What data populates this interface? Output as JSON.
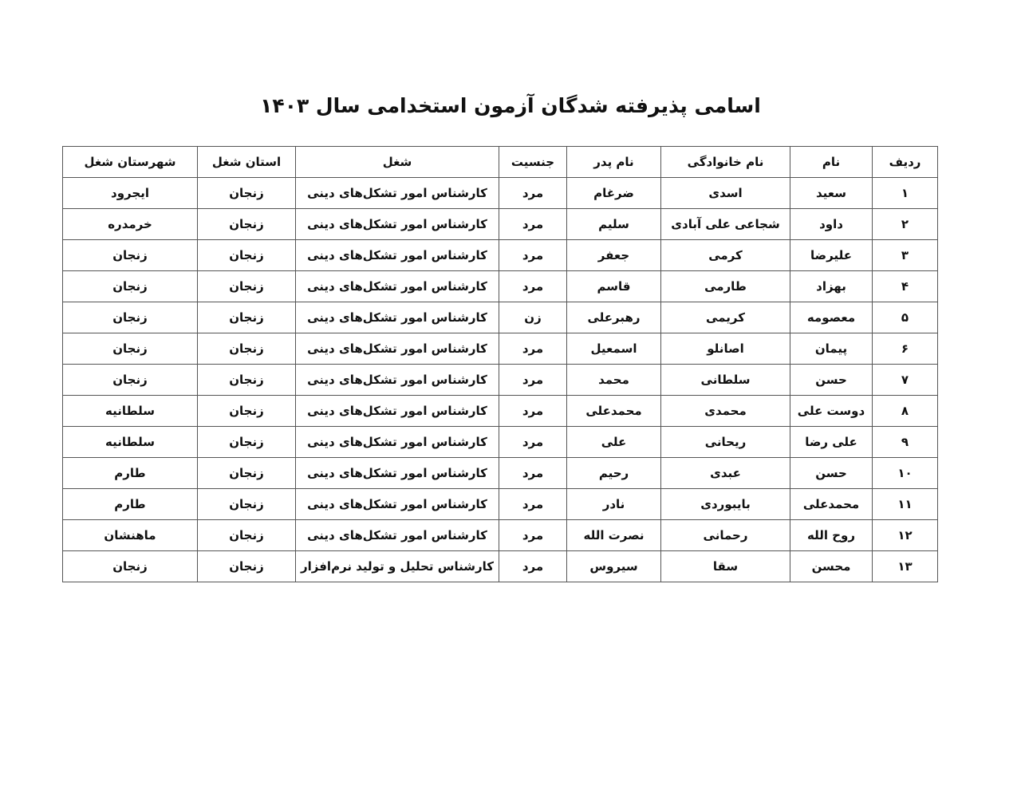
{
  "title": "اسامی پذیرفته شدگان آزمون استخدامی سال ۱۴۰۳",
  "headers": [
    "ردیف",
    "نام",
    "نام خانوادگی",
    "نام پدر",
    "جنسیت",
    "شغل",
    "استان شغل",
    "شهرستان شغل"
  ],
  "rows": [
    [
      "۱",
      "سعید",
      "اسدی",
      "ضرغام",
      "مرد",
      "کارشناس امور تشکل‌های دینی",
      "زنجان",
      "ایجرود"
    ],
    [
      "۲",
      "داود",
      "شجاعی علی آبادی",
      "سلیم",
      "مرد",
      "کارشناس امور تشکل‌های دینی",
      "زنجان",
      "خرمدره"
    ],
    [
      "۳",
      "علیرضا",
      "کرمی",
      "جعفر",
      "مرد",
      "کارشناس امور تشکل‌های دینی",
      "زنجان",
      "زنجان"
    ],
    [
      "۴",
      "بهزاد",
      "طارمی",
      "قاسم",
      "مرد",
      "کارشناس امور تشکل‌های دینی",
      "زنجان",
      "زنجان"
    ],
    [
      "۵",
      "معصومه",
      "کریمی",
      "رهبرعلی",
      "زن",
      "کارشناس امور تشکل‌های دینی",
      "زنجان",
      "زنجان"
    ],
    [
      "۶",
      "پیمان",
      "اصانلو",
      "اسمعیل",
      "مرد",
      "کارشناس امور تشکل‌های دینی",
      "زنجان",
      "زنجان"
    ],
    [
      "۷",
      "حسن",
      "سلطانی",
      "محمد",
      "مرد",
      "کارشناس امور تشکل‌های دینی",
      "زنجان",
      "زنجان"
    ],
    [
      "۸",
      "دوست علی",
      "محمدی",
      "محمدعلی",
      "مرد",
      "کارشناس امور تشکل‌های دینی",
      "زنجان",
      "سلطانیه"
    ],
    [
      "۹",
      "علی رضا",
      "ریحانی",
      "علی",
      "مرد",
      "کارشناس امور تشکل‌های دینی",
      "زنجان",
      "سلطانیه"
    ],
    [
      "۱۰",
      "حسن",
      "عبدی",
      "رحیم",
      "مرد",
      "کارشناس امور تشکل‌های دینی",
      "زنجان",
      "طارم"
    ],
    [
      "۱۱",
      "محمدعلی",
      "بایبوردی",
      "نادر",
      "مرد",
      "کارشناس امور تشکل‌های دینی",
      "زنجان",
      "طارم"
    ],
    [
      "۱۲",
      "روح الله",
      "رحمانی",
      "نصرت الله",
      "مرد",
      "کارشناس امور تشکل‌های دینی",
      "زنجان",
      "ماهنشان"
    ],
    [
      "۱۳",
      "محسن",
      "سقا",
      "سیروس",
      "مرد",
      "کارشناس تحلیل و تولید نرم‌افزار",
      "زنجان",
      "زنجان"
    ]
  ]
}
